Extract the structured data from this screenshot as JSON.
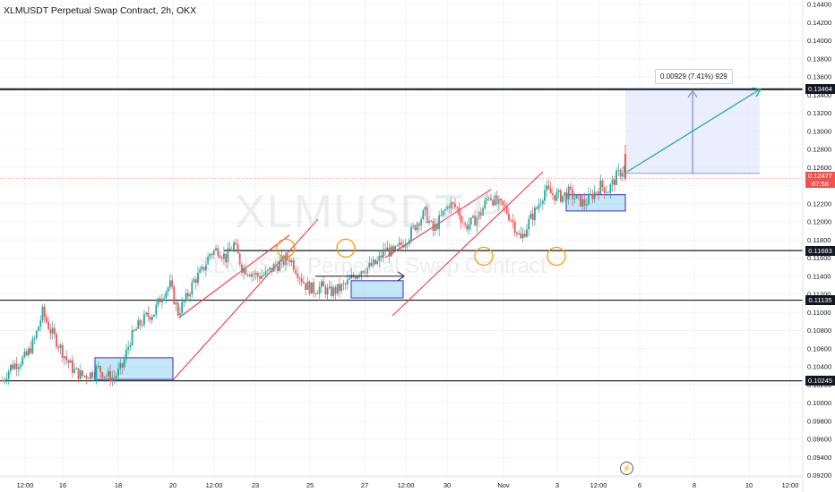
{
  "header": {
    "title": "XLMUSDT Perpetual Swap Contract, 2h, OKX"
  },
  "watermark": {
    "symbol": "XLMUSDT.P",
    "description": "XLMUSDT Perpetual Swap Contract"
  },
  "colors": {
    "up": "#26a69a",
    "down": "#ef5350",
    "channel": "#f23645",
    "box_fill": "#8ed4f2",
    "box_border": "#5b45d1",
    "circle": "#ff9800",
    "projection": "#22ab94",
    "measure_fill": "#dde3fb",
    "measure_line": "#7b8ad6"
  },
  "annotations": {
    "measure_label": "0.00929 (7.41%) 929",
    "current_price_label": "0.12477",
    "countdown_label": "07:58"
  },
  "chart_data": {
    "type": "candlestick",
    "title": "XLMUSDT Perpetual Swap Contract, 2h, OKX",
    "timeframe": "2h",
    "y_ticks": [
      "0.14400",
      "0.14200",
      "0.14000",
      "0.13800",
      "0.13600",
      "0.13400",
      "0.13200",
      "0.13000",
      "0.12800",
      "0.12600",
      "0.12400",
      "0.12200",
      "0.12000",
      "0.11800",
      "0.11600",
      "0.11400",
      "0.11200",
      "0.11000",
      "0.10800",
      "0.10600",
      "0.10400",
      "0.10200",
      "0.10000",
      "0.09800",
      "0.09600",
      "0.09400",
      "0.09200"
    ],
    "ylim": [
      0.092,
      0.145
    ],
    "x_ticks": [
      "12:00",
      "16",
      "18",
      "20",
      "12:00",
      "23",
      "25",
      "27",
      "12:00",
      "30",
      "Nov",
      "3",
      "12:00",
      "6",
      "8",
      "10",
      "12:00"
    ],
    "horizontal_levels": [
      {
        "price": 0.13464,
        "label": "0.13464"
      },
      {
        "price": 0.11683,
        "label": "0.11683"
      },
      {
        "price": 0.11135,
        "label": "0.11135"
      },
      {
        "price": 0.10245,
        "label": "0.10245"
      }
    ],
    "current_price": 0.12477,
    "price_path": [
      0.1025,
      0.104,
      0.1045,
      0.1052,
      0.107,
      0.11,
      0.108,
      0.1065,
      0.1048,
      0.1035,
      0.103,
      0.1032,
      0.1038,
      0.103,
      0.1028,
      0.104,
      0.107,
      0.1085,
      0.1095,
      0.11,
      0.112,
      0.113,
      0.11,
      0.1115,
      0.1135,
      0.1145,
      0.1165,
      0.117,
      0.116,
      0.1175,
      0.115,
      0.1145,
      0.114,
      0.1142,
      0.115,
      0.1155,
      0.116,
      0.1145,
      0.113,
      0.1125,
      0.1128,
      0.1122,
      0.1125,
      0.113,
      0.114,
      0.1148,
      0.115,
      0.1155,
      0.117,
      0.1165,
      0.1175,
      0.1185,
      0.12,
      0.121,
      0.119,
      0.1205,
      0.122,
      0.1215,
      0.1195,
      0.12,
      0.121,
      0.123,
      0.122,
      0.1215,
      0.12,
      0.118,
      0.12,
      0.1215,
      0.1235,
      0.123,
      0.1228,
      0.1232,
      0.1225,
      0.122,
      0.123,
      0.124,
      0.1235,
      0.125,
      0.126
    ]
  }
}
